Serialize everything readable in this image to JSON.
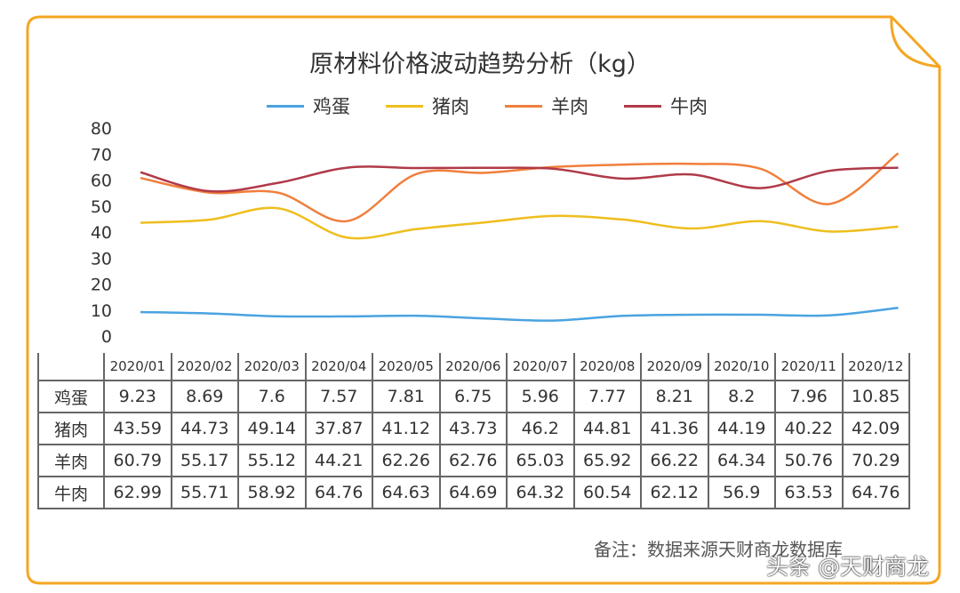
{
  "colors": {
    "border": "#F5A623",
    "鸡蛋": "#4AA3E0",
    "猪肉": "#EFBE1E",
    "羊肉": "#F07F3C",
    "牛肉": "#B03A48"
  },
  "footer": {
    "note": "备注：数据来源天财商龙数据库",
    "watermark": "头条 @天财商龙"
  },
  "chart_data": {
    "type": "line",
    "title": "原材料价格波动趋势分析（kg）",
    "categories": [
      "2020/01",
      "2020/02",
      "2020/03",
      "2020/04",
      "2020/05",
      "2020/06",
      "2020/07",
      "2020/08",
      "2020/09",
      "2020/10",
      "2020/11",
      "2020/12"
    ],
    "ylim": [
      0,
      80
    ],
    "yticks": [
      "0",
      "10",
      "20",
      "30",
      "40",
      "50",
      "60",
      "70",
      "80"
    ],
    "legend": "top",
    "grid": false,
    "series": [
      {
        "name": "鸡蛋",
        "values": [
          "9.23",
          "8.69",
          "7.6",
          "7.57",
          "7.81",
          "6.75",
          "5.96",
          "7.77",
          "8.21",
          "8.2",
          "7.96",
          "10.85"
        ]
      },
      {
        "name": "猪肉",
        "values": [
          "43.59",
          "44.73",
          "49.14",
          "37.87",
          "41.12",
          "43.73",
          "46.2",
          "44.81",
          "41.36",
          "44.19",
          "40.22",
          "42.09"
        ]
      },
      {
        "name": "羊肉",
        "values": [
          "60.79",
          "55.17",
          "55.12",
          "44.21",
          "62.26",
          "62.76",
          "65.03",
          "65.92",
          "66.22",
          "64.34",
          "50.76",
          "70.29"
        ]
      },
      {
        "name": "牛肉",
        "values": [
          "62.99",
          "55.71",
          "58.92",
          "64.76",
          "64.63",
          "64.69",
          "64.32",
          "60.54",
          "62.12",
          "56.9",
          "63.53",
          "64.76"
        ]
      }
    ]
  }
}
